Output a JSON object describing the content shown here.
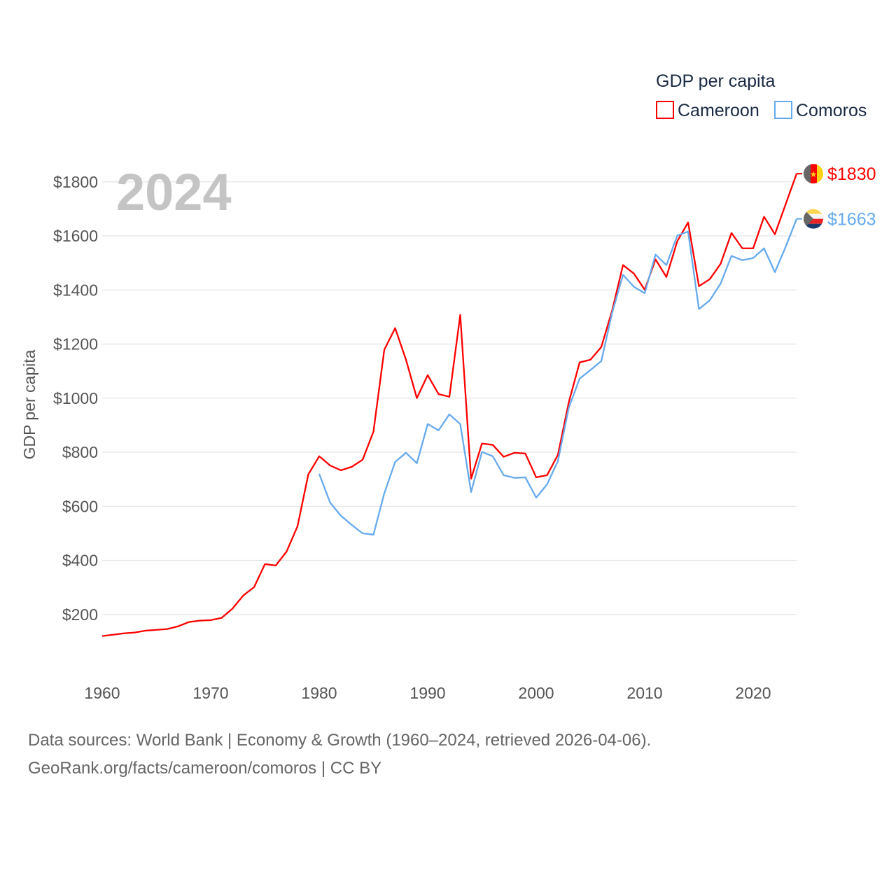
{
  "chart_data": {
    "type": "line",
    "title": "",
    "year_label": "2024",
    "ylabel": "GDP per capita",
    "xlabel": "",
    "xlim": [
      1960,
      2024
    ],
    "ylim": [
      0,
      1900
    ],
    "grid": true,
    "x_ticks": [
      1960,
      1970,
      1980,
      1990,
      2000,
      2010,
      2020
    ],
    "y_ticks": [
      200,
      400,
      600,
      800,
      1000,
      1200,
      1400,
      1600,
      1800
    ],
    "y_tick_labels": [
      "$200",
      "$400",
      "$600",
      "$800",
      "$1000",
      "$1200",
      "$1400",
      "$1600",
      "$1800"
    ],
    "x_tick_labels": [
      "1960",
      "1970",
      "1980",
      "1990",
      "2000",
      "2010",
      "2020"
    ],
    "legend": {
      "title": "GDP per capita",
      "placement": "top-right"
    },
    "series": [
      {
        "name": "Cameroon",
        "color": "#ff0000",
        "flag": "cameroon-flag",
        "end_label": "$1830",
        "start_year": 1960,
        "values": [
          120,
          125,
          130,
          133,
          140,
          143,
          146,
          156,
          172,
          177,
          179,
          187,
          221,
          270,
          301,
          386,
          381,
          433,
          526,
          718,
          785,
          751,
          733,
          746,
          772,
          876,
          1179,
          1259,
          1142,
          1000,
          1085,
          1015,
          1005,
          1308,
          702,
          832,
          827,
          783,
          798,
          795,
          707,
          715,
          790,
          984,
          1132,
          1142,
          1189,
          1324,
          1492,
          1461,
          1401,
          1513,
          1448,
          1580,
          1650,
          1414,
          1440,
          1497,
          1611,
          1554,
          1554,
          1671,
          1606,
          1718,
          1830
        ]
      },
      {
        "name": "Comoros",
        "color": "#66aaee",
        "flag": "comoros-flag",
        "end_label": "$1663",
        "start_year": 1980,
        "values": [
          720,
          614,
          565,
          531,
          500,
          495,
          648,
          764,
          798,
          759,
          904,
          881,
          940,
          904,
          653,
          801,
          785,
          715,
          705,
          707,
          632,
          681,
          767,
          964,
          1072,
          1104,
          1137,
          1316,
          1456,
          1412,
          1388,
          1531,
          1492,
          1601,
          1616,
          1329,
          1362,
          1424,
          1526,
          1510,
          1518,
          1554,
          1466,
          1560,
          1663
        ]
      }
    ]
  },
  "footer": {
    "line1": "Data sources: World Bank | Economy & Growth (1960–2024, retrieved 2026-04-06).",
    "line2": "GeoRank.org/facts/cameroon/comoros | CC BY"
  }
}
